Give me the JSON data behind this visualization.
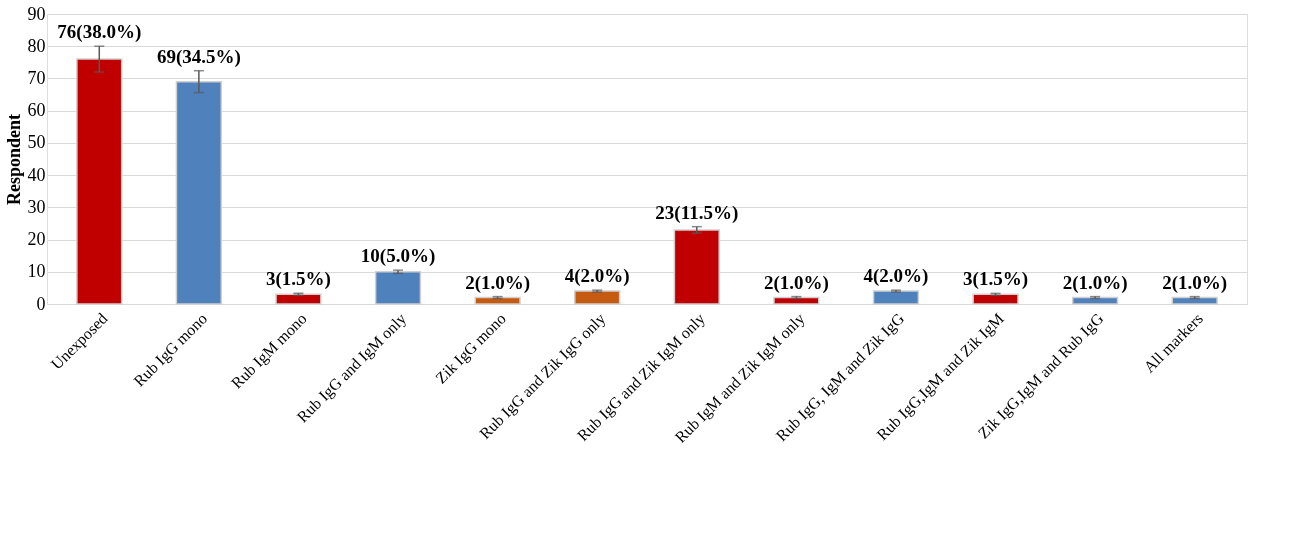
{
  "chart_data": {
    "type": "bar",
    "ylabel": "Respondent",
    "categories": [
      "Unexposed",
      "Rub IgG mono",
      "Rub IgM mono",
      "Rub IgG and IgM only",
      "Zik IgG mono",
      "Rub IgG and Zik IgG only",
      "Rub IgG and Zik IgM only",
      "Rub IgM and Zik IgM only",
      "Rub IgG, IgM and Zik IgG",
      "Rub IgG,IgM and Zik IgM",
      "Zik IgG,IgM and Rub IgG",
      "All markers"
    ],
    "values": [
      76,
      69,
      3,
      10,
      2,
      4,
      23,
      2,
      4,
      3,
      2,
      2
    ],
    "colors": [
      "#c00000",
      "#4f81bd",
      "#c00000",
      "#4f81bd",
      "#c55a11",
      "#c55a11",
      "#c00000",
      "#c00000",
      "#4f81bd",
      "#c00000",
      "#4f81bd",
      "#4f81bd"
    ],
    "errors": [
      4,
      3.4,
      0.3,
      0.5,
      0.3,
      0.3,
      1,
      0.3,
      0.3,
      0.3,
      0.3,
      0.3
    ],
    "value_labels": [
      "76(38.0%)",
      "69(34.5%)",
      "3(1.5%)",
      "10(5.0%)",
      "2(1.0%)",
      "4(2.0%)",
      "23(11.5%)",
      "2(1.0%)",
      "4(2.0%)",
      "3(1.5%)",
      "2(1.0%)",
      "2(1.0%)"
    ],
    "ylim": [
      0,
      90
    ],
    "yticks": [
      0,
      10,
      20,
      30,
      40,
      50,
      60,
      70,
      80,
      90
    ],
    "grid": "y"
  }
}
